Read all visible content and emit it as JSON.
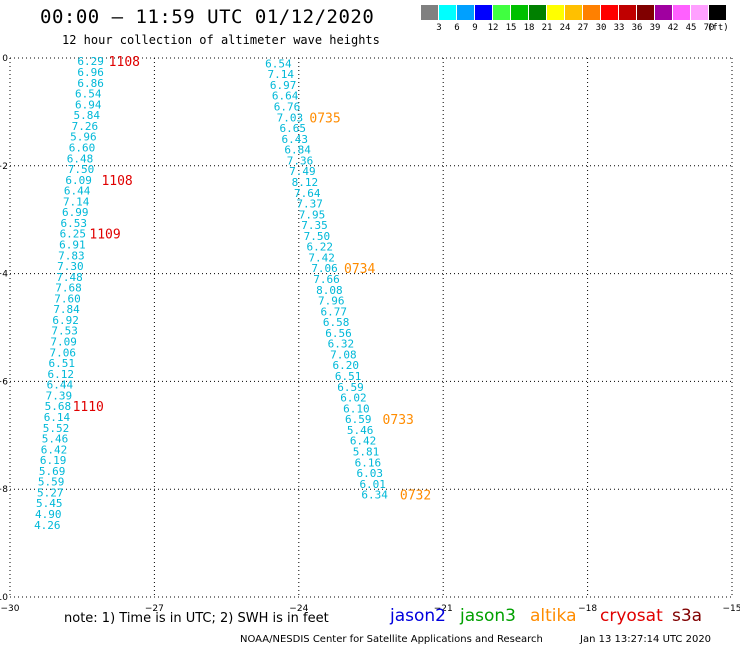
{
  "header": {
    "title": "00:00 – 11:59 UTC 01/12/2020",
    "subtitle": "12 hour collection of altimeter wave heights"
  },
  "legend": {
    "unit": "(ft)",
    "bins": [
      {
        "label": "3",
        "color": "#808080"
      },
      {
        "label": "6",
        "color": "#00ffff"
      },
      {
        "label": "9",
        "color": "#00a0ff"
      },
      {
        "label": "12",
        "color": "#0000ff"
      },
      {
        "label": "15",
        "color": "#40ff40"
      },
      {
        "label": "18",
        "color": "#00c000"
      },
      {
        "label": "21",
        "color": "#008000"
      },
      {
        "label": "24",
        "color": "#ffff00"
      },
      {
        "label": "27",
        "color": "#ffc000"
      },
      {
        "label": "30",
        "color": "#ff8000"
      },
      {
        "label": "33",
        "color": "#ff0000"
      },
      {
        "label": "36",
        "color": "#c00000"
      },
      {
        "label": "39",
        "color": "#800000"
      },
      {
        "label": "42",
        "color": "#a000a0"
      },
      {
        "label": "45",
        "color": "#ff60ff"
      },
      {
        "label": "70",
        "color": "#ffa0ff"
      },
      {
        "label": "",
        "color": "#000000"
      }
    ]
  },
  "axes": {
    "lon_ticks": [
      "−30",
      "−27",
      "−24",
      "−21",
      "−18",
      "−15"
    ],
    "lat_ticks": [
      "0",
      "−2",
      "−4",
      "−6",
      "−8",
      "−10"
    ]
  },
  "tracks": [
    {
      "color": "#00b8d8",
      "points": [
        {
          "lon": -28.6,
          "lat": -0.06,
          "v": "6.29"
        },
        {
          "lon": -28.6,
          "lat": -0.26,
          "v": "6.96"
        },
        {
          "lon": -28.6,
          "lat": -0.46,
          "v": "6.86"
        },
        {
          "lon": -28.65,
          "lat": -0.66,
          "v": "6.54"
        },
        {
          "lon": -28.65,
          "lat": -0.86,
          "v": "6.94"
        },
        {
          "lon": -28.68,
          "lat": -1.06,
          "v": "5.84"
        },
        {
          "lon": -28.72,
          "lat": -1.26,
          "v": "7.26"
        },
        {
          "lon": -28.75,
          "lat": -1.46,
          "v": "5.96"
        },
        {
          "lon": -28.78,
          "lat": -1.66,
          "v": "6.60"
        },
        {
          "lon": -28.82,
          "lat": -1.86,
          "v": "6.48"
        },
        {
          "lon": -28.8,
          "lat": -2.06,
          "v": "7.50"
        },
        {
          "lon": -28.85,
          "lat": -2.26,
          "v": "6.09"
        },
        {
          "lon": -28.88,
          "lat": -2.46,
          "v": "6.44"
        },
        {
          "lon": -28.9,
          "lat": -2.66,
          "v": "7.14"
        },
        {
          "lon": -28.92,
          "lat": -2.86,
          "v": "6.99"
        },
        {
          "lon": -28.95,
          "lat": -3.06,
          "v": "6.53"
        },
        {
          "lon": -28.97,
          "lat": -3.26,
          "v": "6.25"
        },
        {
          "lon": -28.98,
          "lat": -3.46,
          "v": "6.91"
        },
        {
          "lon": -29.0,
          "lat": -3.66,
          "v": "7.83"
        },
        {
          "lon": -29.02,
          "lat": -3.86,
          "v": "7.30"
        },
        {
          "lon": -29.04,
          "lat": -4.06,
          "v": "7.48"
        },
        {
          "lon": -29.06,
          "lat": -4.26,
          "v": "7.68"
        },
        {
          "lon": -29.08,
          "lat": -4.46,
          "v": "7.60"
        },
        {
          "lon": -29.1,
          "lat": -4.66,
          "v": "7.84"
        },
        {
          "lon": -29.12,
          "lat": -4.86,
          "v": "6.92"
        },
        {
          "lon": -29.14,
          "lat": -5.06,
          "v": "7.53"
        },
        {
          "lon": -29.16,
          "lat": -5.26,
          "v": "7.09"
        },
        {
          "lon": -29.18,
          "lat": -5.46,
          "v": "7.06"
        },
        {
          "lon": -29.2,
          "lat": -5.66,
          "v": "6.51"
        },
        {
          "lon": -29.22,
          "lat": -5.86,
          "v": "6.12"
        },
        {
          "lon": -29.24,
          "lat": -6.06,
          "v": "6.44"
        },
        {
          "lon": -29.26,
          "lat": -6.26,
          "v": "7.39"
        },
        {
          "lon": -29.28,
          "lat": -6.46,
          "v": "5.68"
        },
        {
          "lon": -29.3,
          "lat": -6.66,
          "v": "6.14"
        },
        {
          "lon": -29.32,
          "lat": -6.86,
          "v": "5.52"
        },
        {
          "lon": -29.34,
          "lat": -7.06,
          "v": "5.46"
        },
        {
          "lon": -29.36,
          "lat": -7.26,
          "v": "6.42"
        },
        {
          "lon": -29.38,
          "lat": -7.46,
          "v": "6.19"
        },
        {
          "lon": -29.4,
          "lat": -7.66,
          "v": "5.69"
        },
        {
          "lon": -29.42,
          "lat": -7.86,
          "v": "5.59"
        },
        {
          "lon": -29.44,
          "lat": -8.06,
          "v": "5.27"
        },
        {
          "lon": -29.46,
          "lat": -8.26,
          "v": "5.45"
        },
        {
          "lon": -29.48,
          "lat": -8.46,
          "v": "4.90"
        },
        {
          "lon": -29.5,
          "lat": -8.66,
          "v": "4.26"
        }
      ]
    },
    {
      "color": "#00b8d8",
      "points": [
        {
          "lon": -24.7,
          "lat": -0.1,
          "v": "6.54"
        },
        {
          "lon": -24.65,
          "lat": -0.3,
          "v": "7.14"
        },
        {
          "lon": -24.6,
          "lat": -0.5,
          "v": "6.97"
        },
        {
          "lon": -24.56,
          "lat": -0.7,
          "v": "6.64"
        },
        {
          "lon": -24.52,
          "lat": -0.9,
          "v": "6.76"
        },
        {
          "lon": -24.46,
          "lat": -1.1,
          "v": "7.03"
        },
        {
          "lon": -24.4,
          "lat": -1.3,
          "v": "6.65"
        },
        {
          "lon": -24.36,
          "lat": -1.5,
          "v": "6.43"
        },
        {
          "lon": -24.3,
          "lat": -1.7,
          "v": "6.84"
        },
        {
          "lon": -24.25,
          "lat": -1.9,
          "v": "7.36"
        },
        {
          "lon": -24.2,
          "lat": -2.1,
          "v": "7.49"
        },
        {
          "lon": -24.15,
          "lat": -2.3,
          "v": "8.12"
        },
        {
          "lon": -24.1,
          "lat": -2.5,
          "v": "7.64"
        },
        {
          "lon": -24.05,
          "lat": -2.7,
          "v": "7.37"
        },
        {
          "lon": -24.0,
          "lat": -2.9,
          "v": "7.95"
        },
        {
          "lon": -23.95,
          "lat": -3.1,
          "v": "7.35"
        },
        {
          "lon": -23.9,
          "lat": -3.3,
          "v": "7.50"
        },
        {
          "lon": -23.84,
          "lat": -3.5,
          "v": "6.22"
        },
        {
          "lon": -23.8,
          "lat": -3.7,
          "v": "7.42"
        },
        {
          "lon": -23.74,
          "lat": -3.9,
          "v": "7.06"
        },
        {
          "lon": -23.7,
          "lat": -4.1,
          "v": "7.66"
        },
        {
          "lon": -23.64,
          "lat": -4.3,
          "v": "8.08"
        },
        {
          "lon": -23.6,
          "lat": -4.5,
          "v": "7.96"
        },
        {
          "lon": -23.55,
          "lat": -4.7,
          "v": "6.77"
        },
        {
          "lon": -23.5,
          "lat": -4.9,
          "v": "6.58"
        },
        {
          "lon": -23.45,
          "lat": -5.1,
          "v": "6.56"
        },
        {
          "lon": -23.4,
          "lat": -5.3,
          "v": "6.32"
        },
        {
          "lon": -23.35,
          "lat": -5.5,
          "v": "7.08"
        },
        {
          "lon": -23.3,
          "lat": -5.7,
          "v": "6.20"
        },
        {
          "lon": -23.25,
          "lat": -5.9,
          "v": "6.51"
        },
        {
          "lon": -23.2,
          "lat": -6.1,
          "v": "6.59"
        },
        {
          "lon": -23.14,
          "lat": -6.3,
          "v": "6.02"
        },
        {
          "lon": -23.08,
          "lat": -6.5,
          "v": "6.10"
        },
        {
          "lon": -23.04,
          "lat": -6.7,
          "v": "6.59"
        },
        {
          "lon": -23.0,
          "lat": -6.9,
          "v": "5.46"
        },
        {
          "lon": -22.94,
          "lat": -7.1,
          "v": "6.42"
        },
        {
          "lon": -22.88,
          "lat": -7.3,
          "v": "5.81"
        },
        {
          "lon": -22.84,
          "lat": -7.5,
          "v": "6.16"
        },
        {
          "lon": -22.8,
          "lat": -7.7,
          "v": "6.03"
        },
        {
          "lon": -22.74,
          "lat": -7.9,
          "v": "6.01"
        },
        {
          "lon": -22.7,
          "lat": -8.1,
          "v": "6.34"
        }
      ]
    }
  ],
  "time_labels": [
    {
      "lon": -27.95,
      "lat": -0.06,
      "text": "1108",
      "color": "#e00000"
    },
    {
      "lon": -28.1,
      "lat": -2.26,
      "text": "1108",
      "color": "#e00000"
    },
    {
      "lon": -28.35,
      "lat": -3.26,
      "text": "1109",
      "color": "#e00000"
    },
    {
      "lon": -28.7,
      "lat": -6.46,
      "text": "1110",
      "color": "#e00000"
    },
    {
      "lon": -23.78,
      "lat": -1.1,
      "text": "0735",
      "color": "#ff8c00"
    },
    {
      "lon": -23.06,
      "lat": -3.9,
      "text": "0734",
      "color": "#ff8c00"
    },
    {
      "lon": -22.26,
      "lat": -6.7,
      "text": "0733",
      "color": "#ff8c00"
    },
    {
      "lon": -21.9,
      "lat": -8.1,
      "text": "0732",
      "color": "#ff8c00"
    }
  ],
  "footer": {
    "note": "note: 1) Time is in UTC; 2) SWH is in feet",
    "satellites": [
      {
        "name": "jason2",
        "color": "#0000dd"
      },
      {
        "name": "jason3",
        "color": "#00a000"
      },
      {
        "name": "altika",
        "color": "#ff8c00"
      },
      {
        "name": "cryosat",
        "color": "#e00000"
      },
      {
        "name": "s3a",
        "color": "#800000"
      }
    ],
    "credit": "NOAA/NESDIS Center for Satellite Applications and Research",
    "timestamp": "Jan 13 13:27:14 UTC 2020"
  }
}
